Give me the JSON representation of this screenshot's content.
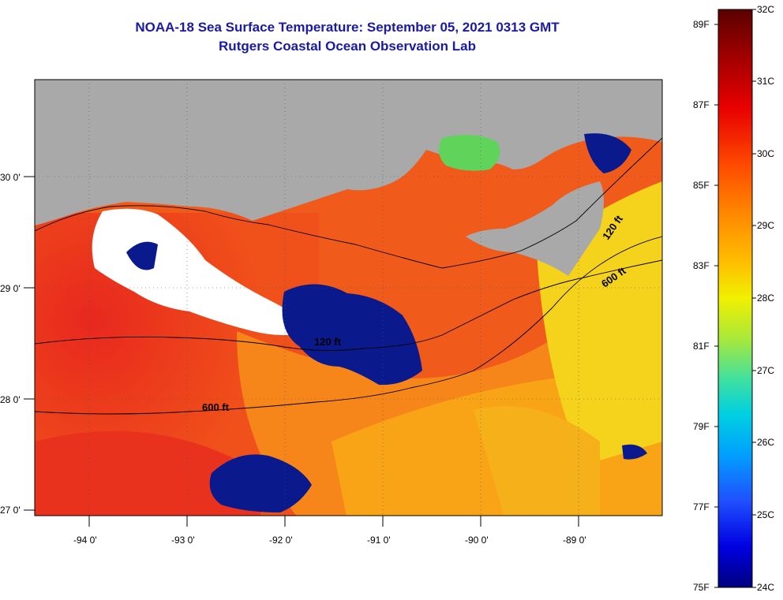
{
  "title": {
    "line1": "NOAA-18 Sea Surface Temperature:  September 05, 2021 0313 GMT",
    "line2": "Rutgers Coastal Ocean Observation Lab"
  },
  "map": {
    "lon_labels": [
      "-94 0'",
      "-93 0'",
      "-92 0'",
      "-91 0'",
      "-90 0'",
      "-89 0'"
    ],
    "lat_labels": [
      "30 0'",
      "29 0'",
      "28 0'",
      "27 0'"
    ],
    "contour_labels": [
      "120 ft",
      "600 ft",
      "120 ft",
      "600 ft"
    ],
    "colors": {
      "land": "#a9a9a9",
      "cloud_low": "#0a1a8c",
      "cloud_white": "#ffffff",
      "warm_red": "#e8281e",
      "orange": "#f57a12",
      "yellow": "#f2df1a"
    }
  },
  "colorbar": {
    "celsius": [
      "32C",
      "31C",
      "30C",
      "29C",
      "28C",
      "27C",
      "26C",
      "25C",
      "24C"
    ],
    "fahrenheit": [
      "89F",
      "87F",
      "85F",
      "83F",
      "81F",
      "79F",
      "77F",
      "75F"
    ],
    "stops": [
      "#5a0000",
      "#a00000",
      "#e80000",
      "#ff4a00",
      "#ff8c00",
      "#ffc000",
      "#f0f000",
      "#a8e83a",
      "#40e0a0",
      "#00d0e0",
      "#00a0ff",
      "#2050ff",
      "#0000e0",
      "#000080"
    ]
  }
}
